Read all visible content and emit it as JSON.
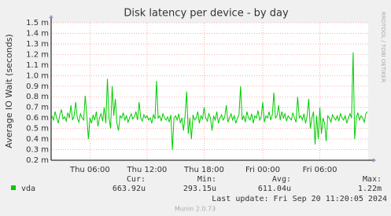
{
  "chart_data": {
    "type": "line",
    "title": "Disk latency per device - by day",
    "ylabel": "Average IO Wait (seconds)",
    "watermark": "RRDTOOL / TOBI OETIKER",
    "categories": [
      null,
      null,
      null,
      null,
      null,
      null,
      null,
      null,
      null,
      null,
      null,
      null,
      null,
      null,
      null,
      null,
      null,
      null,
      null,
      null,
      null,
      null,
      null,
      null,
      "Thu 06:00",
      null,
      null,
      null,
      null,
      null,
      null,
      null,
      null,
      null,
      null,
      null,
      null,
      null,
      null,
      null,
      null,
      null,
      null,
      null,
      null,
      null,
      null,
      null,
      null,
      null,
      null,
      null,
      null,
      null,
      null,
      null,
      null,
      null,
      null,
      null,
      "Thu 12:00",
      null,
      null,
      null,
      null,
      null,
      null,
      null,
      null,
      null,
      null,
      null,
      null,
      null,
      null,
      null,
      null,
      null,
      null,
      null,
      null,
      null,
      null,
      null,
      null,
      null,
      null,
      null,
      null,
      null,
      null,
      null,
      null,
      null,
      null,
      null,
      "Thu 18:00",
      null,
      null,
      null,
      null,
      null,
      null,
      null,
      null,
      null,
      null,
      null,
      null,
      null,
      null,
      null,
      null,
      null,
      null,
      null,
      null,
      null,
      null,
      null,
      null,
      null,
      null,
      null,
      null,
      null,
      null,
      null,
      null,
      null,
      null,
      null,
      null,
      "Fri 00:00",
      null,
      null,
      null,
      null,
      null,
      null,
      null,
      null,
      null,
      null,
      null,
      null,
      null,
      null,
      null,
      null,
      null,
      null,
      null,
      null,
      null,
      null,
      null,
      null,
      null,
      null,
      null,
      null,
      null,
      null,
      null,
      null,
      null,
      null,
      null,
      "Fri 06:00",
      null,
      null,
      null,
      null,
      null,
      null,
      null,
      null,
      null,
      null,
      null,
      null,
      null,
      null,
      null,
      null,
      null,
      null,
      null,
      null,
      null,
      null,
      null,
      null,
      null,
      null,
      null,
      null,
      null,
      null
    ],
    "series": [
      {
        "name": "vda",
        "color": "#00cc00",
        "values": [
          0.62,
          0.58,
          0.66,
          0.6,
          0.55,
          0.63,
          0.68,
          0.59,
          0.61,
          0.57,
          0.65,
          0.6,
          0.72,
          0.58,
          0.62,
          0.75,
          0.6,
          0.56,
          0.64,
          0.6,
          0.58,
          0.81,
          0.62,
          0.4,
          0.6,
          0.55,
          0.63,
          0.58,
          0.66,
          0.52,
          0.6,
          0.64,
          0.57,
          0.7,
          0.55,
          0.97,
          0.6,
          0.5,
          0.9,
          0.62,
          0.78,
          0.55,
          0.48,
          0.62,
          0.6,
          0.65,
          0.58,
          0.62,
          0.56,
          0.6,
          0.64,
          0.59,
          0.61,
          0.66,
          0.58,
          0.75,
          0.6,
          0.57,
          0.63,
          0.6,
          0.62,
          0.58,
          0.6,
          0.55,
          0.63,
          0.59,
          0.95,
          0.6,
          0.62,
          0.57,
          0.64,
          0.6,
          0.58,
          0.61,
          0.56,
          0.63,
          0.3,
          0.6,
          0.62,
          0.58,
          0.64,
          0.55,
          0.6,
          0.48,
          0.62,
          0.85,
          0.45,
          0.6,
          0.4,
          0.63,
          0.58,
          0.6,
          0.66,
          0.55,
          0.62,
          0.59,
          0.7,
          0.6,
          0.57,
          0.64,
          0.6,
          0.48,
          0.62,
          0.58,
          0.66,
          0.55,
          0.6,
          0.63,
          0.58,
          0.61,
          0.72,
          0.56,
          0.6,
          0.64,
          0.58,
          0.62,
          0.55,
          0.6,
          0.63,
          0.9,
          0.58,
          0.62,
          0.56,
          0.66,
          0.6,
          0.58,
          0.64,
          0.55,
          0.62,
          0.6,
          0.67,
          0.58,
          0.61,
          0.75,
          0.56,
          0.62,
          0.6,
          0.66,
          0.58,
          0.63,
          0.84,
          0.6,
          0.62,
          0.72,
          0.58,
          0.66,
          0.6,
          0.64,
          0.57,
          0.62,
          0.6,
          0.58,
          0.65,
          0.6,
          0.56,
          0.8,
          0.6,
          0.62,
          0.58,
          0.64,
          0.55,
          0.62,
          0.78,
          0.5,
          0.6,
          0.66,
          0.35,
          0.62,
          0.4,
          0.7,
          0.45,
          0.6,
          0.55,
          0.38,
          0.62,
          0.6,
          0.56,
          0.63,
          0.6,
          0.58,
          0.62,
          0.57,
          0.64,
          0.6,
          0.58,
          0.62,
          0.55,
          0.6,
          0.64,
          0.6,
          1.22,
          0.4,
          0.6,
          0.65,
          0.58,
          0.62,
          0.6,
          0.56,
          0.64,
          0.66
        ]
      }
    ],
    "ylim": [
      0.2,
      1.5
    ],
    "yticks": [
      {
        "value": 0.2,
        "label": "0.2 m"
      },
      {
        "value": 0.3,
        "label": "0.3 m"
      },
      {
        "value": 0.4,
        "label": "0.4 m"
      },
      {
        "value": 0.5,
        "label": "0.5 m"
      },
      {
        "value": 0.6,
        "label": "0.6 m"
      },
      {
        "value": 0.7,
        "label": "0.7 m"
      },
      {
        "value": 0.8,
        "label": "0.8 m"
      },
      {
        "value": 0.9,
        "label": "0.9 m"
      },
      {
        "value": 1.0,
        "label": "1.0 m"
      },
      {
        "value": 1.1,
        "label": "1.1 m"
      },
      {
        "value": 1.2,
        "label": "1.2 m"
      },
      {
        "value": 1.3,
        "label": "1.3 m"
      },
      {
        "value": 1.4,
        "label": "1.4 m"
      },
      {
        "value": 1.5,
        "label": "1.5 m"
      }
    ],
    "grid": true,
    "stats": [
      {
        "label": "Cur:",
        "value": "663.92u"
      },
      {
        "label": "Min:",
        "value": "293.15u"
      },
      {
        "label": "Avg:",
        "value": "611.04u"
      },
      {
        "label": "Max:",
        "value": "1.22m"
      }
    ],
    "last_update": "Last update: Fri Sep 20 11:20:05 2024",
    "version": "Munin 2.0.73"
  }
}
